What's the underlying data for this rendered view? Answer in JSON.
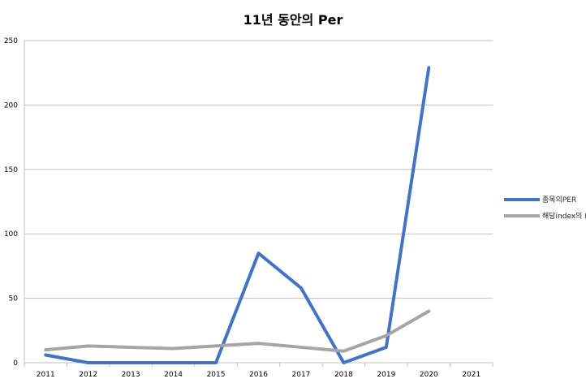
{
  "chart_data": {
    "type": "line",
    "title": "11년 동안의 Per",
    "xlabel": "",
    "ylabel": "",
    "categories": [
      "2011",
      "2012",
      "2013",
      "2014",
      "2015",
      "2016",
      "2017",
      "2018",
      "2019",
      "2020",
      "2021"
    ],
    "ylim": [
      0,
      250
    ],
    "yticks": [
      0,
      50,
      100,
      150,
      200,
      250
    ],
    "grid": true,
    "legend_position": "right",
    "series": [
      {
        "name": "종목의PER",
        "color": "#4472C4",
        "values": [
          6,
          0,
          0,
          0,
          0,
          85,
          58,
          0,
          12,
          229,
          null
        ]
      },
      {
        "name": "해당index의 PER",
        "color": "#A5A5A5",
        "values": [
          10,
          13,
          12,
          11,
          13,
          15,
          12,
          9,
          21,
          40,
          null
        ]
      }
    ]
  }
}
